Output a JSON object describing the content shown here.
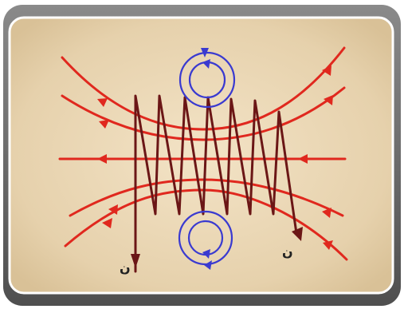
{
  "diagram": {
    "labels": {
      "left_end": "ن",
      "right_end": "ن"
    },
    "colors": {
      "field_line": "#e0281e",
      "coil_wire": "#6b1616",
      "loop_field": "#3a3ad0",
      "panel_fill": "#ecd9b6",
      "panel_edge": "#ffffff",
      "frame": "#6e6e6e",
      "label": "#222222"
    }
  }
}
